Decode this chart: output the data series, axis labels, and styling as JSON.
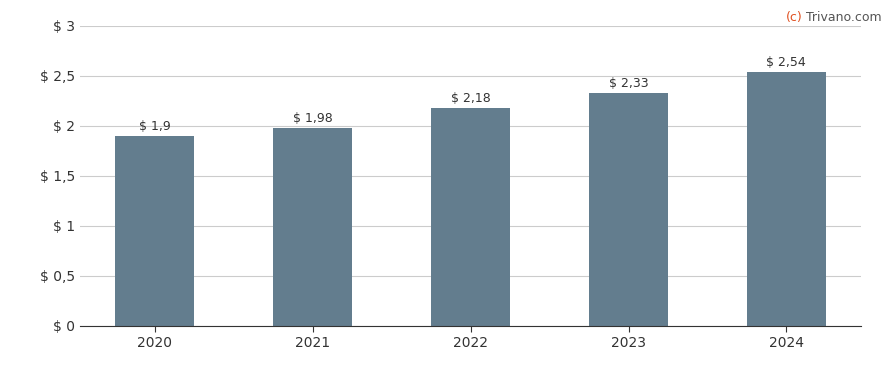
{
  "categories": [
    "2020",
    "2021",
    "2022",
    "2023",
    "2024"
  ],
  "values": [
    1.9,
    1.98,
    2.18,
    2.33,
    2.54
  ],
  "bar_labels": [
    "$ 1,9",
    "$ 1,98",
    "$ 2,18",
    "$ 2,33",
    "$ 2,54"
  ],
  "bar_color": "#637d8e",
  "background_color": "#ffffff",
  "ylim": [
    0,
    3.0
  ],
  "yticks": [
    0,
    0.5,
    1.0,
    1.5,
    2.0,
    2.5,
    3.0
  ],
  "ytick_labels": [
    "$ 0",
    "$ 0,5",
    "$ 1",
    "$ 1,5",
    "$ 2",
    "$ 2,5",
    "$ 3"
  ],
  "watermark_c": "(c)",
  "watermark_rest": " Trivano.com",
  "watermark_color_c": "#e05020",
  "watermark_color_rest": "#555555",
  "grid_color": "#cccccc",
  "bar_label_fontsize": 9,
  "tick_fontsize": 10,
  "watermark_fontsize": 9
}
